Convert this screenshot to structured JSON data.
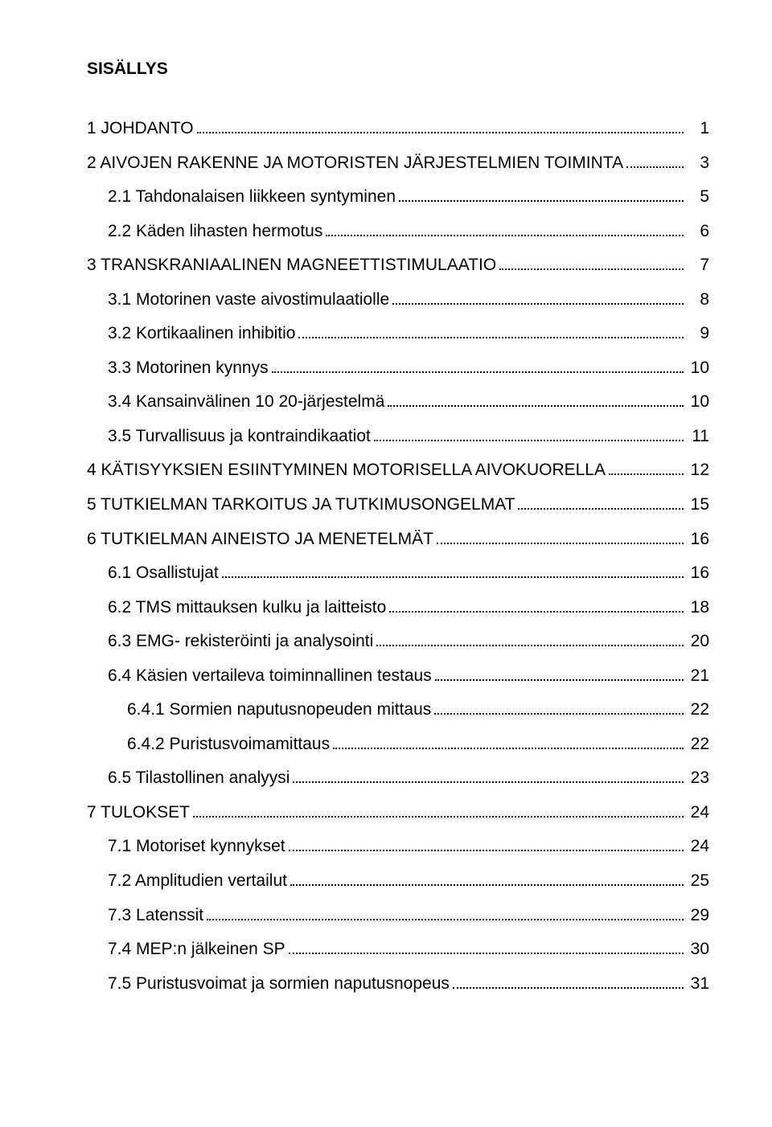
{
  "title": "SISÄLLYS",
  "entries": [
    {
      "label": "1 JOHDANTO",
      "page": "1",
      "level": 1
    },
    {
      "label": "2 AIVOJEN RAKENNE JA MOTORISTEN JÄRJESTELMIEN TOIMINTA",
      "page": "3",
      "level": 1
    },
    {
      "label": "2.1 Tahdonalaisen liikkeen syntyminen",
      "page": "5",
      "level": 2
    },
    {
      "label": "2.2 Käden lihasten hermotus",
      "page": "6",
      "level": 2
    },
    {
      "label": "3 TRANSKRANIAALINEN MAGNEETTISTIMULAATIO",
      "page": "7",
      "level": 1
    },
    {
      "label": "3.1 Motorinen vaste aivostimulaatiolle",
      "page": "8",
      "level": 2
    },
    {
      "label": "3.2 Kortikaalinen inhibitio",
      "page": "9",
      "level": 2
    },
    {
      "label": "3.3 Motorinen kynnys",
      "page": "10",
      "level": 2
    },
    {
      "label": "3.4 Kansainvälinen 10 20-järjestelmä",
      "page": "10",
      "level": 2
    },
    {
      "label": "3.5 Turvallisuus ja kontraindikaatiot",
      "page": "11",
      "level": 2
    },
    {
      "label": "4 KÄTISYYKSIEN ESIINTYMINEN MOTORISELLA AIVOKUORELLA",
      "page": "12",
      "level": 1
    },
    {
      "label": "5 TUTKIELMAN TARKOITUS JA TUTKIMUSONGELMAT",
      "page": "15",
      "level": 1
    },
    {
      "label": "6 TUTKIELMAN AINEISTO JA MENETELMÄT",
      "page": "16",
      "level": 1
    },
    {
      "label": "6.1 Osallistujat",
      "page": "16",
      "level": 2
    },
    {
      "label": "6.2 TMS mittauksen kulku ja laitteisto",
      "page": "18",
      "level": 2
    },
    {
      "label": "6.3 EMG- rekisteröinti ja analysointi",
      "page": "20",
      "level": 2
    },
    {
      "label": "6.4 Käsien vertaileva toiminnallinen testaus",
      "page": "21",
      "level": 2
    },
    {
      "label": "6.4.1 Sormien naputusnopeuden mittaus",
      "page": "22",
      "level": 3
    },
    {
      "label": "6.4.2 Puristusvoimamittaus",
      "page": "22",
      "level": 3
    },
    {
      "label": "6.5 Tilastollinen analyysi",
      "page": "23",
      "level": 2
    },
    {
      "label": "7 TULOKSET",
      "page": "24",
      "level": 1
    },
    {
      "label": "7.1 Motoriset kynnykset",
      "page": "24",
      "level": 2
    },
    {
      "label": "7.2 Amplitudien vertailut",
      "page": "25",
      "level": 2
    },
    {
      "label": "7.3 Latenssit",
      "page": "29",
      "level": 2
    },
    {
      "label": "7.4 MEP:n jälkeinen SP",
      "page": "30",
      "level": 2
    },
    {
      "label": "7.5 Puristusvoimat ja sormien naputusnopeus",
      "page": "31",
      "level": 2
    }
  ]
}
